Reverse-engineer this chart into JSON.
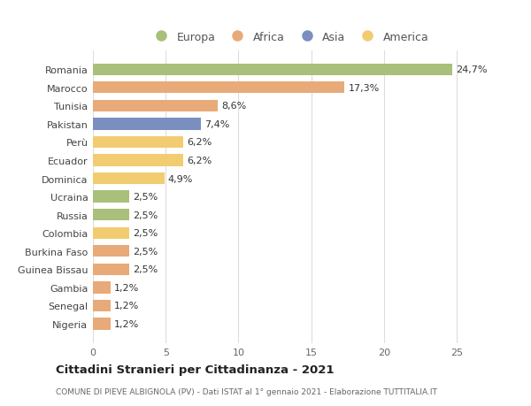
{
  "categories": [
    "Romania",
    "Marocco",
    "Tunisia",
    "Pakistan",
    "Perù",
    "Ecuador",
    "Dominica",
    "Ucraina",
    "Russia",
    "Colombia",
    "Burkina Faso",
    "Guinea Bissau",
    "Gambia",
    "Senegal",
    "Nigeria"
  ],
  "values": [
    24.7,
    17.3,
    8.6,
    7.4,
    6.2,
    6.2,
    4.9,
    2.5,
    2.5,
    2.5,
    2.5,
    2.5,
    1.2,
    1.2,
    1.2
  ],
  "labels": [
    "24,7%",
    "17,3%",
    "8,6%",
    "7,4%",
    "6,2%",
    "6,2%",
    "4,9%",
    "2,5%",
    "2,5%",
    "2,5%",
    "2,5%",
    "2,5%",
    "1,2%",
    "1,2%",
    "1,2%"
  ],
  "colors": [
    "#a8c07a",
    "#e8aa78",
    "#e8aa78",
    "#7a8fbf",
    "#f2cc70",
    "#f2cc70",
    "#f2cc70",
    "#a8c07a",
    "#a8c07a",
    "#f2cc70",
    "#e8aa78",
    "#e8aa78",
    "#e8aa78",
    "#e8aa78",
    "#e8aa78"
  ],
  "legend_labels": [
    "Europa",
    "Africa",
    "Asia",
    "America"
  ],
  "legend_colors": [
    "#a8c07a",
    "#e8aa78",
    "#7a8fbf",
    "#f2cc70"
  ],
  "title_main": "Cittadini Stranieri per Cittadinanza - 2021",
  "title_sub": "COMUNE DI PIEVE ALBIGNOLA (PV) - Dati ISTAT al 1° gennaio 2021 - Elaborazione TUTTITALIA.IT",
  "xlim": [
    0,
    27
  ],
  "xticks": [
    0,
    5,
    10,
    15,
    20,
    25
  ],
  "background_color": "#ffffff",
  "grid_color": "#dddddd",
  "bar_height": 0.65
}
